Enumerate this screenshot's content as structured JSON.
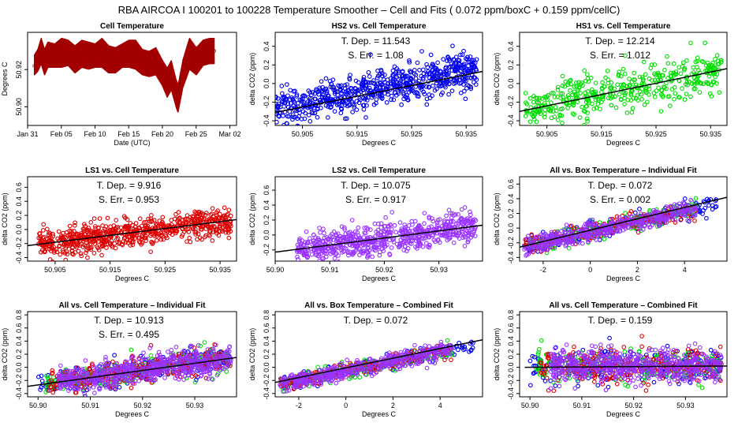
{
  "figure_title": "RBA   AIRCOA I   100201 to 100228   Temperature Smoother – Cell and Fits ( 0.072  ppm/boxC +  0.159  ppm/cellC)",
  "colors": {
    "red": "#dd0000",
    "blue": "#0000ee",
    "green": "#00dd00",
    "purple": "#9933ff",
    "darkred": "#a30000",
    "line": "#000000"
  },
  "chart_data": [
    {
      "id": "p1",
      "type": "line",
      "title": "Cell Temperature",
      "xlabel": "Date (UTC)",
      "ylabel": "Degrees C",
      "xlim": [
        0,
        31
      ],
      "ylim": [
        50.89,
        50.94
      ],
      "xticks": [
        {
          "v": 0,
          "label": "Jan 31"
        },
        {
          "v": 5,
          "label": "Feb 05"
        },
        {
          "v": 10,
          "label": "Feb 10"
        },
        {
          "v": 15,
          "label": "Feb 15"
        },
        {
          "v": 20,
          "label": "Feb 20"
        },
        {
          "v": 25,
          "label": "Feb 25"
        },
        {
          "v": 30,
          "label": "Mar 02"
        }
      ],
      "yticks": [
        {
          "v": 50.92,
          "label": "50.92"
        },
        {
          "v": 50.9,
          "label": "50.90"
        }
      ],
      "series": [
        {
          "name": "cell temperature",
          "color": "darkred",
          "x": [
            1,
            1.5,
            2,
            2.5,
            3,
            4,
            5,
            6,
            7,
            8,
            9,
            10,
            11,
            12,
            13,
            14,
            15,
            16,
            17,
            18,
            19,
            20,
            20.7,
            21.3,
            22,
            22.3,
            23,
            23.5,
            24,
            25,
            26,
            27,
            27.7
          ],
          "y": [
            50.922,
            50.926,
            50.931,
            50.924,
            50.928,
            50.927,
            50.93,
            50.928,
            50.926,
            50.929,
            50.928,
            50.927,
            50.929,
            50.926,
            50.925,
            50.927,
            50.929,
            50.928,
            50.924,
            50.923,
            50.925,
            50.919,
            50.915,
            50.918,
            50.908,
            50.905,
            50.918,
            50.924,
            50.929,
            50.925,
            50.929,
            50.931,
            50.93
          ],
          "low": [
            50.917,
            50.919,
            50.923,
            50.917,
            50.921,
            50.921,
            50.921,
            50.922,
            50.918,
            50.921,
            50.92,
            50.921,
            50.921,
            50.918,
            50.918,
            50.921,
            50.921,
            50.92,
            50.917,
            50.916,
            50.917,
            50.911,
            50.905,
            50.909,
            50.9,
            50.897,
            50.91,
            50.915,
            50.92,
            50.917,
            50.922,
            50.923,
            50.923
          ],
          "high": [
            50.928,
            50.931,
            50.937,
            50.931,
            50.935,
            50.934,
            50.937,
            50.936,
            50.933,
            50.936,
            50.935,
            50.934,
            50.937,
            50.933,
            50.932,
            50.934,
            50.936,
            50.936,
            50.931,
            50.93,
            50.932,
            50.925,
            50.921,
            50.925,
            50.915,
            50.912,
            50.925,
            50.931,
            50.937,
            50.932,
            50.936,
            50.937,
            50.937
          ]
        }
      ]
    },
    {
      "id": "p2",
      "type": "scatter",
      "title": "HS2 vs. Cell Temperature",
      "xlabel": "Degrees C",
      "ylabel": "delta CO2 (ppm)",
      "xlim": [
        50.9,
        50.938
      ],
      "ylim": [
        -0.45,
        0.55
      ],
      "xticks": [
        {
          "v": 50.905,
          "label": "50.905"
        },
        {
          "v": 50.915,
          "label": "50.915"
        },
        {
          "v": 50.925,
          "label": "50.925"
        },
        {
          "v": 50.935,
          "label": "50.935"
        }
      ],
      "yticks": [
        {
          "v": -0.4,
          "label": "-0.4"
        },
        {
          "v": -0.2,
          "label": "-0.2"
        },
        {
          "v": 0,
          "label": "0.0"
        },
        {
          "v": 0.2,
          "label": "0.2"
        },
        {
          "v": 0.4,
          "label": "0.4"
        }
      ],
      "annotations": [
        "T. Dep. = 11.543",
        "S. Err. = 1.08"
      ],
      "series": [
        {
          "name": "HS2",
          "color": "blue",
          "xmin": 50.9,
          "xmax": 50.937,
          "center": [
            50.92,
            -0.04
          ],
          "slope": 11.543,
          "spread": 0.1,
          "n": 700
        }
      ],
      "fit": {
        "x": [
          50.9,
          50.938
        ],
        "y": [
          -0.31,
          0.13
        ]
      }
    },
    {
      "id": "p3",
      "type": "scatter",
      "title": "HS1 vs. Cell Temperature",
      "xlabel": "Degrees C",
      "ylabel": "delta CO2 (ppm)",
      "xlim": [
        50.9,
        50.938
      ],
      "ylim": [
        -0.45,
        0.55
      ],
      "xticks": [
        {
          "v": 50.905,
          "label": "50.905"
        },
        {
          "v": 50.915,
          "label": "50.915"
        },
        {
          "v": 50.925,
          "label": "50.925"
        },
        {
          "v": 50.935,
          "label": "50.935"
        }
      ],
      "yticks": [
        {
          "v": -0.4,
          "label": "-0.4"
        },
        {
          "v": -0.2,
          "label": "-0.2"
        },
        {
          "v": 0,
          "label": "0.0"
        },
        {
          "v": 0.2,
          "label": "0.2"
        },
        {
          "v": 0.4,
          "label": "0.4"
        }
      ],
      "annotations": [
        "T. Dep. = 12.214",
        "S. Err. = 1.012"
      ],
      "series": [
        {
          "name": "HS1",
          "color": "green",
          "xmin": 50.901,
          "xmax": 50.937,
          "center": [
            50.92,
            -0.06
          ],
          "slope": 12.214,
          "spread": 0.11,
          "n": 450
        }
      ],
      "fit": {
        "x": [
          50.9,
          50.938
        ],
        "y": [
          -0.3,
          0.16
        ]
      }
    },
    {
      "id": "p4",
      "type": "scatter",
      "title": "LS1 vs. Cell Temperature",
      "xlabel": "Degrees C",
      "ylabel": "delta CO2 (ppm)",
      "xlim": [
        50.9,
        50.938
      ],
      "ylim": [
        -0.45,
        0.75
      ],
      "xticks": [
        {
          "v": 50.905,
          "label": "50.905"
        },
        {
          "v": 50.915,
          "label": "50.915"
        },
        {
          "v": 50.925,
          "label": "50.925"
        },
        {
          "v": 50.935,
          "label": "50.935"
        }
      ],
      "yticks": [
        {
          "v": -0.4,
          "label": "-0.4"
        },
        {
          "v": -0.2,
          "label": "-0.2"
        },
        {
          "v": 0,
          "label": "0.0"
        },
        {
          "v": 0.2,
          "label": "0.2"
        },
        {
          "v": 0.4,
          "label": "0.4"
        },
        {
          "v": 0.6,
          "label": "0.6"
        }
      ],
      "annotations": [
        "T. Dep. = 9.916",
        "S. Err. = 0.953"
      ],
      "series": [
        {
          "name": "LS1",
          "color": "red",
          "xmin": 50.902,
          "xmax": 50.937,
          "center": [
            50.92,
            -0.04
          ],
          "slope": 9.916,
          "spread": 0.1,
          "n": 700
        }
      ],
      "fit": {
        "x": [
          50.9,
          50.938
        ],
        "y": [
          -0.23,
          0.14
        ]
      }
    },
    {
      "id": "p5",
      "type": "scatter",
      "title": "LS2 vs. Cell Temperature",
      "xlabel": "Degrees C",
      "ylabel": "delta CO2 (ppm)",
      "xlim": [
        50.9,
        50.938
      ],
      "ylim": [
        -0.35,
        0.78
      ],
      "xticks": [
        {
          "v": 50.9,
          "label": "50.90"
        },
        {
          "v": 50.91,
          "label": "50.91"
        },
        {
          "v": 50.92,
          "label": "50.92"
        },
        {
          "v": 50.93,
          "label": "50.93"
        }
      ],
      "yticks": [
        {
          "v": -0.2,
          "label": "-0.2"
        },
        {
          "v": 0,
          "label": "0.0"
        },
        {
          "v": 0.2,
          "label": "0.2"
        },
        {
          "v": 0.4,
          "label": "0.4"
        },
        {
          "v": 0.6,
          "label": "0.6"
        }
      ],
      "annotations": [
        "T. Dep. = 10.075",
        "S. Err. = 0.917"
      ],
      "series": [
        {
          "name": "LS2",
          "color": "purple",
          "xmin": 50.904,
          "xmax": 50.937,
          "center": [
            50.92,
            -0.04
          ],
          "slope": 10.075,
          "spread": 0.1,
          "n": 650
        }
      ],
      "fit": {
        "x": [
          50.9,
          50.938
        ],
        "y": [
          -0.23,
          0.13
        ]
      }
    },
    {
      "id": "p6",
      "type": "scatter",
      "title": "All vs. Box Temperature – Individual Fit",
      "xlabel": "Degrees C",
      "ylabel": "delta CO2 (ppm)",
      "xlim": [
        -3,
        5.8
      ],
      "ylim": [
        -0.45,
        0.7
      ],
      "xticks": [
        {
          "v": -2,
          "label": "-2"
        },
        {
          "v": 0,
          "label": "0"
        },
        {
          "v": 2,
          "label": "2"
        },
        {
          "v": 4,
          "label": "4"
        }
      ],
      "yticks": [
        {
          "v": -0.4,
          "label": "-0.4"
        },
        {
          "v": -0.2,
          "label": "-0.2"
        },
        {
          "v": 0,
          "label": "0.0"
        },
        {
          "v": 0.2,
          "label": "0.2"
        },
        {
          "v": 0.4,
          "label": "0.4"
        },
        {
          "v": 0.6,
          "label": "0.6"
        }
      ],
      "annotations": [
        "T. Dep. = 0.072",
        "S. Err. = 0.002"
      ],
      "series": [
        {
          "name": "HS2",
          "color": "blue",
          "xmin": -2.8,
          "xmax": 5.4,
          "center": [
            0.5,
            -0.02
          ],
          "slope": 0.072,
          "spread": 0.06,
          "n": 180
        },
        {
          "name": "HS1",
          "color": "green",
          "xmin": -2.8,
          "xmax": 4.5,
          "center": [
            0.5,
            -0.02
          ],
          "slope": 0.072,
          "spread": 0.06,
          "n": 180
        },
        {
          "name": "LS1",
          "color": "red",
          "xmin": -2.8,
          "xmax": 4.5,
          "center": [
            0.5,
            -0.02
          ],
          "slope": 0.072,
          "spread": 0.06,
          "n": 180
        },
        {
          "name": "LS2",
          "color": "purple",
          "xmin": -2.8,
          "xmax": 4.5,
          "center": [
            0.5,
            -0.02
          ],
          "slope": 0.072,
          "spread": 0.06,
          "n": 420
        }
      ],
      "fit": {
        "x": [
          -3,
          5.8
        ],
        "y": [
          -0.26,
          0.42
        ]
      }
    },
    {
      "id": "p7",
      "type": "scatter",
      "title": "All vs. Cell Temperature – Individual Fit",
      "xlabel": "Degrees C",
      "ylabel": "delta CO2 (ppm)",
      "xlim": [
        50.898,
        50.938
      ],
      "ylim": [
        -0.45,
        0.85
      ],
      "xticks": [
        {
          "v": 50.9,
          "label": "50.90"
        },
        {
          "v": 50.91,
          "label": "50.91"
        },
        {
          "v": 50.92,
          "label": "50.92"
        },
        {
          "v": 50.93,
          "label": "50.93"
        }
      ],
      "yticks": [
        {
          "v": -0.4,
          "label": "-0.4"
        },
        {
          "v": -0.2,
          "label": "-0.2"
        },
        {
          "v": 0,
          "label": "0.0"
        },
        {
          "v": 0.2,
          "label": "0.2"
        },
        {
          "v": 0.4,
          "label": "0.4"
        },
        {
          "v": 0.6,
          "label": "0.6"
        },
        {
          "v": 0.8,
          "label": "0.8"
        }
      ],
      "annotations": [
        "T. Dep. = 10.913",
        "S. Err. = 0.495"
      ],
      "series": [
        {
          "name": "HS2",
          "color": "blue",
          "xmin": 50.9,
          "xmax": 50.937,
          "center": [
            50.92,
            -0.04
          ],
          "slope": 10.9,
          "spread": 0.1,
          "n": 250
        },
        {
          "name": "HS1",
          "color": "green",
          "xmin": 50.901,
          "xmax": 50.937,
          "center": [
            50.92,
            -0.04
          ],
          "slope": 10.9,
          "spread": 0.1,
          "n": 200
        },
        {
          "name": "LS1",
          "color": "red",
          "xmin": 50.902,
          "xmax": 50.937,
          "center": [
            50.92,
            -0.04
          ],
          "slope": 10.9,
          "spread": 0.1,
          "n": 250
        },
        {
          "name": "LS2",
          "color": "purple",
          "xmin": 50.904,
          "xmax": 50.937,
          "center": [
            50.92,
            -0.04
          ],
          "slope": 10.9,
          "spread": 0.1,
          "n": 550
        }
      ],
      "fit": {
        "x": [
          50.898,
          50.938
        ],
        "y": [
          -0.29,
          0.15
        ]
      }
    },
    {
      "id": "p8",
      "type": "scatter",
      "title": "All vs. Box Temperature – Combined Fit",
      "xlabel": "Degrees C",
      "ylabel": "delta CO2 (ppm)",
      "xlim": [
        -3,
        5.8
      ],
      "ylim": [
        -0.45,
        0.85
      ],
      "xticks": [
        {
          "v": -2,
          "label": "-2"
        },
        {
          "v": 0,
          "label": "0"
        },
        {
          "v": 2,
          "label": "2"
        },
        {
          "v": 4,
          "label": "4"
        }
      ],
      "yticks": [
        {
          "v": -0.4,
          "label": "-0.4"
        },
        {
          "v": -0.2,
          "label": "-0.2"
        },
        {
          "v": 0,
          "label": "0.0"
        },
        {
          "v": 0.2,
          "label": "0.2"
        },
        {
          "v": 0.4,
          "label": "0.4"
        },
        {
          "v": 0.6,
          "label": "0.6"
        },
        {
          "v": 0.8,
          "label": "0.8"
        }
      ],
      "annotations": [
        "T. Dep. = 0.072"
      ],
      "series": [
        {
          "name": "HS2",
          "color": "blue",
          "xmin": -2.8,
          "xmax": 5.4,
          "center": [
            0.5,
            -0.02
          ],
          "slope": 0.072,
          "spread": 0.06,
          "n": 180
        },
        {
          "name": "HS1",
          "color": "green",
          "xmin": -2.8,
          "xmax": 4.5,
          "center": [
            0.5,
            -0.02
          ],
          "slope": 0.072,
          "spread": 0.06,
          "n": 180
        },
        {
          "name": "LS1",
          "color": "red",
          "xmin": -2.8,
          "xmax": 4.5,
          "center": [
            0.5,
            -0.02
          ],
          "slope": 0.072,
          "spread": 0.06,
          "n": 180
        },
        {
          "name": "LS2",
          "color": "purple",
          "xmin": -2.8,
          "xmax": 4.5,
          "center": [
            0.5,
            -0.02
          ],
          "slope": 0.072,
          "spread": 0.06,
          "n": 420
        }
      ],
      "fit": {
        "x": [
          -3,
          5.8
        ],
        "y": [
          -0.23,
          0.42
        ]
      }
    },
    {
      "id": "p9",
      "type": "scatter",
      "title": "All vs. Cell Temperature – Combined Fit",
      "xlabel": "Degrees C",
      "ylabel": "delta CO2 (ppm)",
      "xlim": [
        50.898,
        50.938
      ],
      "ylim": [
        -0.45,
        0.85
      ],
      "xticks": [
        {
          "v": 50.9,
          "label": "50.90"
        },
        {
          "v": 50.91,
          "label": "50.91"
        },
        {
          "v": 50.92,
          "label": "50.92"
        },
        {
          "v": 50.93,
          "label": "50.93"
        }
      ],
      "yticks": [
        {
          "v": -0.4,
          "label": "-0.4"
        },
        {
          "v": -0.2,
          "label": "-0.2"
        },
        {
          "v": 0,
          "label": "0.0"
        },
        {
          "v": 0.2,
          "label": "0.2"
        },
        {
          "v": 0.4,
          "label": "0.4"
        },
        {
          "v": 0.6,
          "label": "0.6"
        },
        {
          "v": 0.8,
          "label": "0.8"
        }
      ],
      "annotations": [
        "T. Dep. = 0.159"
      ],
      "series": [
        {
          "name": "HS2",
          "color": "blue",
          "xmin": 50.9,
          "xmax": 50.937,
          "center": [
            50.92,
            0.02
          ],
          "slope": 0.5,
          "spread": 0.12,
          "n": 250
        },
        {
          "name": "HS1",
          "color": "green",
          "xmin": 50.901,
          "xmax": 50.937,
          "center": [
            50.92,
            0.02
          ],
          "slope": 0.5,
          "spread": 0.12,
          "n": 200
        },
        {
          "name": "LS1",
          "color": "red",
          "xmin": 50.902,
          "xmax": 50.937,
          "center": [
            50.92,
            0.02
          ],
          "slope": 0.5,
          "spread": 0.12,
          "n": 250
        },
        {
          "name": "LS2",
          "color": "purple",
          "xmin": 50.904,
          "xmax": 50.937,
          "center": [
            50.92,
            0.02
          ],
          "slope": 0.5,
          "spread": 0.12,
          "n": 550
        }
      ],
      "fit": {
        "x": [
          50.899,
          50.938
        ],
        "y": [
          0.0,
          0.02
        ]
      }
    }
  ]
}
